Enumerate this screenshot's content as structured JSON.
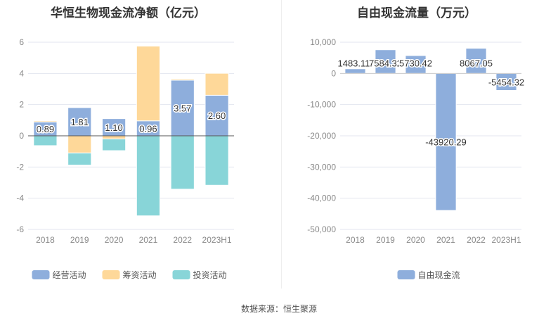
{
  "source": "数据来源：恒生聚源",
  "colors": {
    "operating": "#8eaedc",
    "financing": "#fed899",
    "investing": "#88d5d8",
    "fcf": "#8eaedc"
  },
  "chart_data": [
    {
      "type": "bar",
      "stacked": true,
      "title": "华恒生物现金流净额（亿元）",
      "categories": [
        "2018",
        "2019",
        "2020",
        "2021",
        "2022",
        "2023H1"
      ],
      "series": [
        {
          "name": "经营活动",
          "values": [
            0.89,
            1.81,
            1.1,
            0.96,
            3.57,
            2.6
          ],
          "labels": [
            "0.89",
            "1.81",
            "1.10",
            "0.96",
            "3.57",
            "2.60"
          ]
        },
        {
          "name": "筹资活动",
          "values": [
            0.07,
            -1.1,
            -0.2,
            4.79,
            0.08,
            1.41
          ]
        },
        {
          "name": "投资活动",
          "values": [
            -0.63,
            -0.78,
            -0.75,
            -5.13,
            -3.42,
            -3.17
          ]
        }
      ],
      "ylim": [
        -6,
        6
      ],
      "yticks": [
        "6",
        "4",
        "2",
        "0",
        "-2",
        "-4",
        "-6"
      ],
      "legend": "bottom"
    },
    {
      "type": "bar",
      "title": "自由现金流量（万元）",
      "categories": [
        "2018",
        "2019",
        "2020",
        "2021",
        "2022",
        "2023H1"
      ],
      "series": [
        {
          "name": "自由现金流",
          "values": [
            1483.11,
            7584.32,
            5730.42,
            -43920.29,
            8067.05,
            -5454.32
          ],
          "labels": [
            "1483.11",
            "7584.32",
            "5730.42",
            "-43920.29",
            "8067.05",
            "-5454.32"
          ]
        }
      ],
      "ylim": [
        -50000,
        10000
      ],
      "yticks": [
        "10,000",
        "0",
        "-10,000",
        "-20,000",
        "-30,000",
        "-40,000",
        "-50,000"
      ],
      "legend": "bottom"
    }
  ]
}
